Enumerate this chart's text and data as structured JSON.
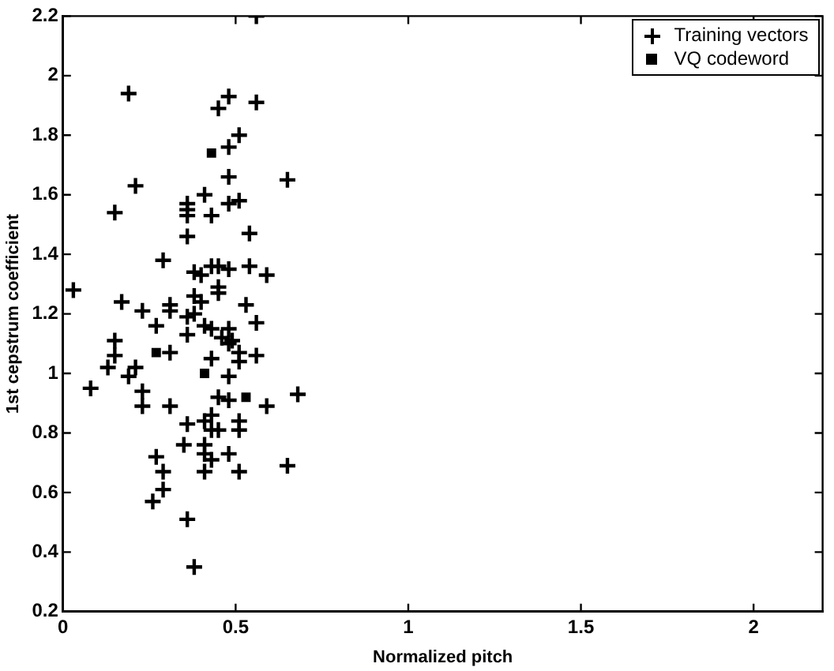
{
  "chart_data": {
    "type": "scatter",
    "xlabel": "Normalized pitch",
    "ylabel": "1st cepstrum coefficient",
    "xlim": [
      0,
      2.2
    ],
    "xticks": [
      0,
      0.5,
      1,
      1.5,
      2
    ],
    "ylim": [
      0.2,
      2.2
    ],
    "yticks": [
      0.2,
      0.4,
      0.6,
      0.8,
      1,
      1.2,
      1.4,
      1.6,
      1.8,
      2,
      2.2
    ],
    "grid": false,
    "legend": "top right",
    "series": [
      {
        "name": "Training vectors",
        "color": "#000000",
        "marker": "cross",
        "x": [
          0.56,
          0.19,
          0.48,
          0.45,
          0.56,
          0.51,
          0.48,
          0.48,
          0.65,
          0.21,
          0.15,
          0.41,
          0.36,
          0.36,
          0.36,
          0.43,
          0.48,
          0.51,
          0.36,
          0.54,
          0.29,
          0.03,
          0.38,
          0.4,
          0.43,
          0.45,
          0.48,
          0.54,
          0.59,
          0.45,
          0.45,
          0.38,
          0.4,
          0.17,
          0.23,
          0.31,
          0.31,
          0.27,
          0.36,
          0.38,
          0.53,
          0.56,
          0.41,
          0.43,
          0.48,
          0.36,
          0.46,
          0.48,
          0.15,
          0.15,
          0.13,
          0.31,
          0.21,
          0.43,
          0.49,
          0.51,
          0.51,
          0.56,
          0.48,
          0.08,
          0.19,
          0.23,
          0.23,
          0.31,
          0.45,
          0.48,
          0.59,
          0.68,
          0.43,
          0.36,
          0.41,
          0.45,
          0.43,
          0.51,
          0.51,
          0.35,
          0.41,
          0.27,
          0.41,
          0.43,
          0.48,
          0.29,
          0.41,
          0.51,
          0.65,
          0.29,
          0.26,
          0.36,
          0.38
        ],
        "values": [
          2.2,
          1.94,
          1.93,
          1.89,
          1.91,
          1.8,
          1.76,
          1.66,
          1.65,
          1.63,
          1.54,
          1.6,
          1.57,
          1.55,
          1.53,
          1.53,
          1.57,
          1.58,
          1.46,
          1.47,
          1.38,
          1.28,
          1.34,
          1.33,
          1.36,
          1.36,
          1.35,
          1.36,
          1.33,
          1.29,
          1.27,
          1.26,
          1.24,
          1.24,
          1.21,
          1.23,
          1.21,
          1.16,
          1.19,
          1.2,
          1.23,
          1.17,
          1.16,
          1.15,
          1.15,
          1.13,
          1.12,
          1.1,
          1.11,
          1.06,
          1.02,
          1.07,
          1.02,
          1.05,
          1.11,
          1.07,
          1.04,
          1.06,
          0.99,
          0.95,
          0.99,
          0.94,
          0.89,
          0.89,
          0.92,
          0.91,
          0.89,
          0.93,
          0.86,
          0.83,
          0.84,
          0.81,
          0.81,
          0.84,
          0.81,
          0.76,
          0.76,
          0.72,
          0.73,
          0.71,
          0.73,
          0.67,
          0.67,
          0.67,
          0.69,
          0.61,
          0.57,
          0.51,
          0.35
        ]
      },
      {
        "name": "VQ codeword",
        "color": "#000000",
        "marker": "square",
        "x": [
          0.43,
          0.27,
          0.41,
          0.53
        ],
        "values": [
          1.74,
          1.07,
          1.0,
          0.92
        ]
      }
    ]
  }
}
